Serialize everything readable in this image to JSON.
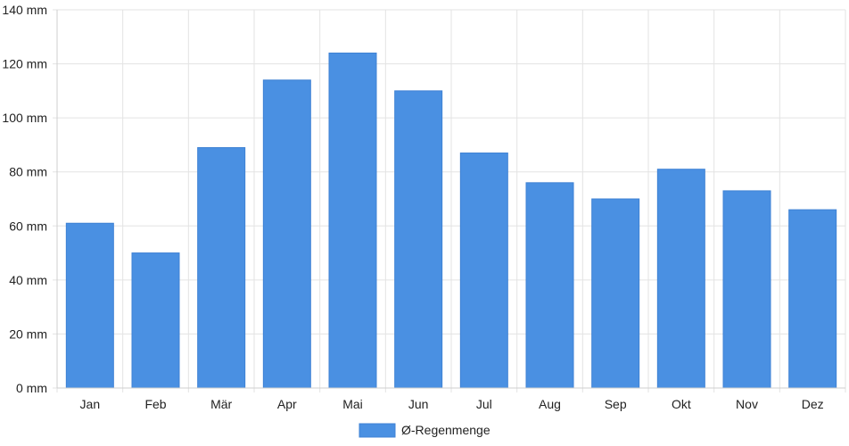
{
  "chart_data": {
    "type": "bar",
    "categories": [
      "Jan",
      "Feb",
      "Mär",
      "Apr",
      "Mai",
      "Jun",
      "Jul",
      "Aug",
      "Sep",
      "Okt",
      "Nov",
      "Dez"
    ],
    "series": [
      {
        "name": "Ø-Regenmenge",
        "color": "#4a90e2",
        "values": [
          61,
          50,
          89,
          114,
          124,
          110,
          87,
          76,
          70,
          81,
          73,
          66
        ]
      }
    ],
    "y_unit": "mm",
    "ylim": [
      0,
      140
    ],
    "yticks": [
      0,
      20,
      40,
      60,
      80,
      100,
      120,
      140
    ],
    "ytick_labels": [
      "0 mm",
      "20 mm",
      "40 mm",
      "60 mm",
      "80 mm",
      "100 mm",
      "120 mm",
      "140 mm"
    ],
    "grid": true,
    "legend_position": "bottom-center"
  }
}
